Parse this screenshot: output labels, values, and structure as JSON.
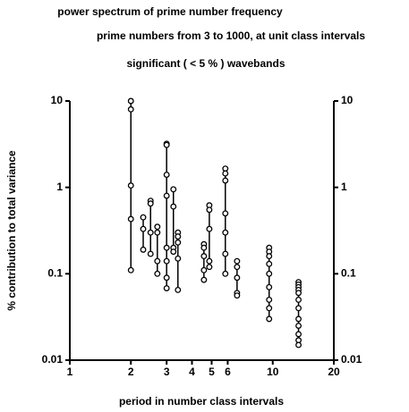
{
  "chart_data": {
    "type": "scatter",
    "title": "power spectrum of prime number frequency",
    "subtitle": "prime numbers from 3 to 1000, at unit class intervals",
    "annotation": "significant ( < 5 % ) wavebands",
    "ylabel": "% contribution to total variance",
    "xlabel": "period in number class intervals",
    "log_x": true,
    "log_y": true,
    "color": "#000000",
    "xlim": [
      1,
      20
    ],
    "xticks": [
      1,
      2,
      3,
      4,
      5,
      6,
      10,
      20
    ],
    "ylim": [
      0.01,
      10
    ],
    "yticks": [
      10,
      1,
      0.1,
      0.01
    ],
    "series": [
      {
        "x": 2,
        "values": [
          10,
          8,
          1.05,
          0.43,
          0.11
        ]
      },
      {
        "x": 2.3,
        "values": [
          0.45,
          0.33,
          0.19
        ]
      },
      {
        "x": 2.5,
        "values": [
          0.7,
          0.65,
          0.3,
          0.17
        ]
      },
      {
        "x": 2.7,
        "values": [
          0.35,
          0.3,
          0.14,
          0.1
        ]
      },
      {
        "x": 3,
        "values": [
          3.2,
          3.1,
          1.4,
          0.8,
          0.2,
          0.14,
          0.09,
          0.068
        ]
      },
      {
        "x": 3.24,
        "values": [
          0.95,
          0.6,
          0.2,
          0.18
        ]
      },
      {
        "x": 3.41,
        "values": [
          0.3,
          0.27,
          0.23,
          0.15,
          0.065
        ]
      },
      {
        "x": 4.58,
        "values": [
          0.22,
          0.2,
          0.16,
          0.11,
          0.085
        ]
      },
      {
        "x": 4.87,
        "values": [
          0.62,
          0.55,
          0.33,
          0.14,
          0.12
        ]
      },
      {
        "x": 5.84,
        "values": [
          1.65,
          1.45,
          1.2,
          0.5,
          0.3,
          0.17,
          0.1
        ]
      },
      {
        "x": 6.67,
        "values": [
          0.14,
          0.12,
          0.09,
          0.06,
          0.056
        ]
      },
      {
        "x": 9.6,
        "values": [
          0.2,
          0.18,
          0.16,
          0.13,
          0.1,
          0.07,
          0.05,
          0.04,
          0.03
        ]
      },
      {
        "x": 13.4,
        "values": [
          0.08,
          0.075,
          0.07,
          0.065,
          0.06,
          0.05,
          0.04,
          0.03,
          0.025,
          0.02,
          0.017,
          0.015
        ]
      }
    ]
  }
}
